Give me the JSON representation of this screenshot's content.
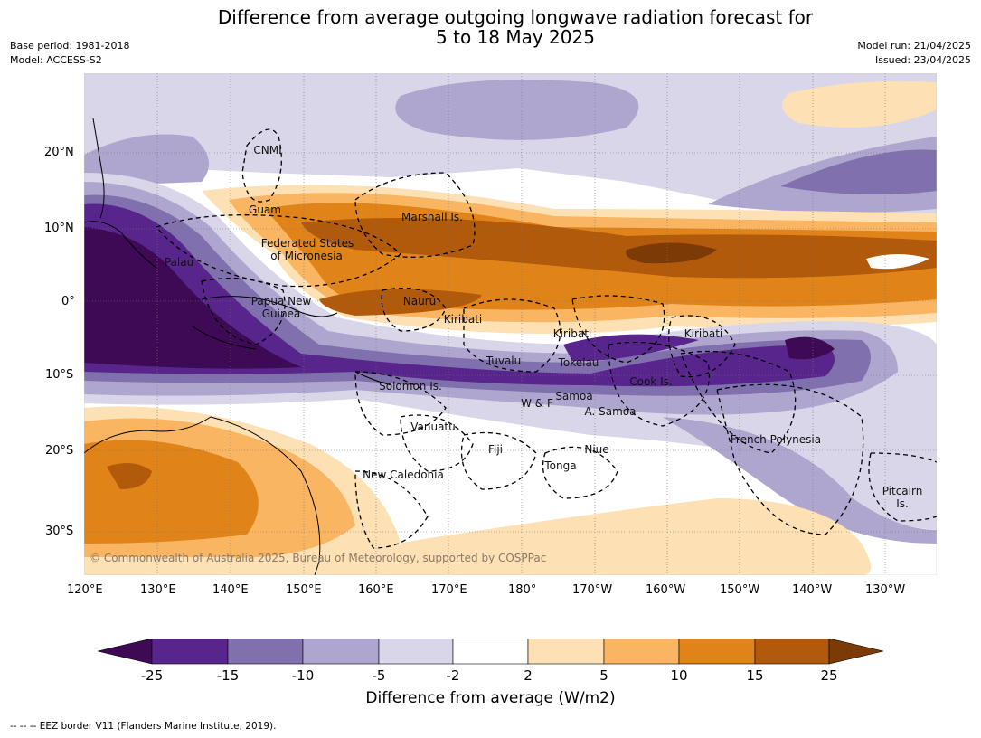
{
  "header": {
    "title_line1": "Difference from average outgoing longwave radiation forecast for",
    "title_line2": "5 to 18 May 2025",
    "base_period": "Base period: 1981-2018",
    "model": "Model: ACCESS-S2",
    "model_run": "Model run: 21/04/2025",
    "issued": "Issued: 23/04/2025"
  },
  "map": {
    "lat_labels": [
      "20°N",
      "10°N",
      "0°",
      "10°S",
      "20°S",
      "30°S"
    ],
    "lon_labels": [
      "120°E",
      "130°E",
      "140°E",
      "150°E",
      "160°E",
      "170°E",
      "180°",
      "170°W",
      "160°W",
      "150°W",
      "140°W",
      "130°W"
    ],
    "copyright": "© Commonwealth of Australia 2025, Bureau of Meteorology, supported by COSPPac",
    "regions": [
      "CNMI",
      "Guam",
      "Marshall Is.",
      "Federated States",
      "of Micronesia",
      "Palau",
      "Papua New",
      "Guinea",
      "Nauru",
      "Kiribati",
      "Kiribati",
      "Kiribati",
      "Tuvalu",
      "Tokelau",
      "Cook Is.",
      "Solomon Is.",
      "Samoa",
      "W & F",
      "A. Samoa",
      "Vanuatu",
      "Fiji",
      "Niue",
      "Tonga",
      "French Polynesia",
      "New Caledonia",
      "Pitcairn",
      "Is."
    ]
  },
  "colorbar": {
    "title": "Difference from average (W/m2)",
    "ticks": [
      "-25",
      "-15",
      "-10",
      "-5",
      "-2",
      "2",
      "5",
      "10",
      "15",
      "25"
    ],
    "colors": [
      "#3f0a55",
      "#58258c",
      "#8070ae",
      "#aea6cf",
      "#d8d6e8",
      "#ffffff",
      "#fde0b3",
      "#f9b562",
      "#e08419",
      "#b25a0b",
      "#7c3a06"
    ]
  },
  "footnote": "-- -- -- EEZ border V11 (Flanders Marine Institute, 2019)."
}
